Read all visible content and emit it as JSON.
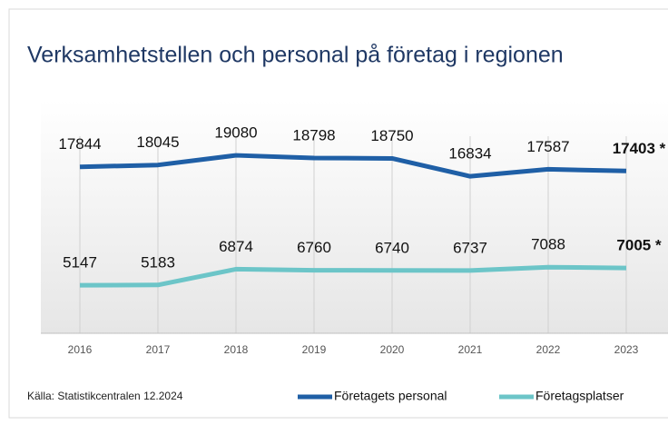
{
  "chart_data": {
    "type": "line",
    "title": "Verksamhetstellen och personal på företag i regionen",
    "source": "Källa: Statistikcentralen 12.2024",
    "categories": [
      "2016",
      "2017",
      "2018",
      "2019",
      "2020",
      "2021",
      "2022",
      "2023"
    ],
    "ylim": [
      0,
      26000
    ],
    "series": [
      {
        "name": "Företagets personal",
        "color": "#1f5fa6",
        "values": [
          17844,
          18045,
          19080,
          18798,
          18750,
          16834,
          17587,
          17403
        ],
        "value_labels": [
          "17844",
          "18045",
          "19080",
          "18798",
          "18750",
          "16834",
          "17587",
          "17403 *"
        ]
      },
      {
        "name": "Företagsplatser",
        "color": "#6cc5c8",
        "values": [
          5147,
          5183,
          6874,
          6760,
          6740,
          6737,
          7088,
          7005
        ],
        "value_labels": [
          "5147",
          "5183",
          "6874",
          "6760",
          "6740",
          "6737",
          "7088",
          "7005 *"
        ]
      }
    ]
  }
}
